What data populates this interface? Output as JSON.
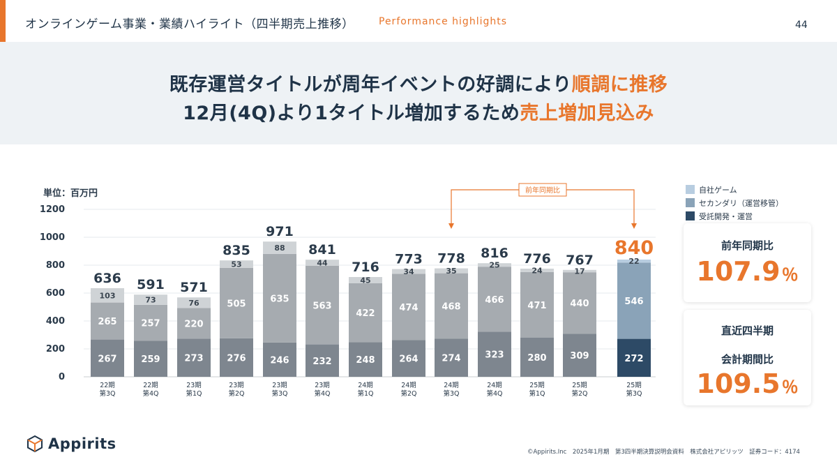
{
  "header": {
    "title": "オンラインゲーム事業・業績ハイライト（四半期売上推移）",
    "subtitle": "Performance highlights",
    "page_number": "44"
  },
  "banner": {
    "line1_main": "既存運営タイトルが周年イベントの好調により",
    "line1_highlight": "順調に推移",
    "line2_main": "12月(4Q)より1タイトル増加するため",
    "line2_highlight": "売上増加見込み"
  },
  "colors": {
    "accent": "#e8762c",
    "navy": "#1f3347",
    "contract_bar": "#7e868f",
    "secondary_bar": "#a6abb0",
    "own_bar": "#cfd3d6",
    "contract_highlight": "#2d4a66",
    "secondary_highlight": "#8aa3b8",
    "own_highlight": "#b8cde0"
  },
  "legend": {
    "items": [
      {
        "label": "自社ゲーム",
        "color": "#b8cde0"
      },
      {
        "label": "セカンダリ（運営移管）",
        "color": "#8aa3b8"
      },
      {
        "label": "受託開発・運営",
        "color": "#2d4a66"
      }
    ]
  },
  "cards": {
    "yoy_label": "前年同期比",
    "yoy_value": "107.9",
    "yoy_unit": "％",
    "qoq_label_line1": "直近四半期",
    "qoq_label_line2": "会計期間比",
    "qoq_value": "109.5",
    "qoq_unit": "％"
  },
  "chart_data": {
    "type": "bar",
    "stacked": true,
    "unit_label": "単位：百万円",
    "ylim": [
      0,
      1200
    ],
    "yticks": [
      0,
      200,
      400,
      600,
      800,
      1000,
      1200
    ],
    "categories": [
      [
        "22期",
        "第3Q"
      ],
      [
        "22期",
        "第4Q"
      ],
      [
        "23期",
        "第1Q"
      ],
      [
        "23期",
        "第2Q"
      ],
      [
        "23期",
        "第3Q"
      ],
      [
        "23期",
        "第4Q"
      ],
      [
        "24期",
        "第1Q"
      ],
      [
        "24期",
        "第2Q"
      ],
      [
        "24期",
        "第3Q"
      ],
      [
        "24期",
        "第4Q"
      ],
      [
        "25期",
        "第1Q"
      ],
      [
        "25期",
        "第2Q"
      ],
      [
        "25期",
        "第3Q"
      ]
    ],
    "series": [
      {
        "name": "受託開発・運営",
        "values": [
          267,
          259,
          273,
          276,
          246,
          232,
          248,
          264,
          274,
          323,
          280,
          309,
          272
        ]
      },
      {
        "name": "セカンダリ（運営移管）",
        "values": [
          265,
          257,
          220,
          505,
          635,
          563,
          422,
          474,
          468,
          466,
          471,
          440,
          546
        ]
      },
      {
        "name": "自社ゲーム",
        "values": [
          103,
          73,
          76,
          53,
          88,
          44,
          45,
          34,
          35,
          25,
          24,
          17,
          22
        ]
      }
    ],
    "totals": [
      636,
      591,
      571,
      835,
      971,
      841,
      716,
      773,
      778,
      816,
      776,
      767,
      840
    ],
    "highlight_index": 12,
    "comparison_label": "前年同期比",
    "comparison_from_index": 8,
    "comparison_to_index": 12
  },
  "logo": {
    "text": "Appirits"
  },
  "footer": {
    "text": "©Appirits.Inc　2025年1月期　第3四半期決算説明会資料　株式会社アピリッツ　証券コード：4174"
  }
}
